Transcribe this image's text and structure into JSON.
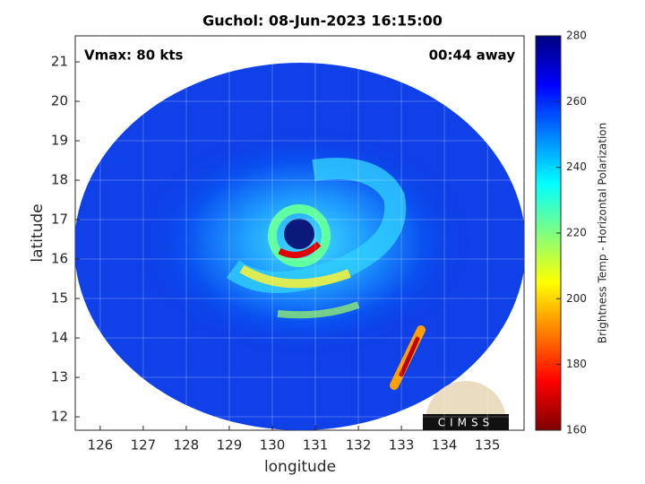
{
  "chart_data": {
    "type": "image",
    "title": "Guchol: 08-Jun-2023 16:15:00",
    "xlabel": "longitude",
    "ylabel": "latitude",
    "xlim": [
      125.42,
      135.85
    ],
    "xticks": [
      126,
      127,
      128,
      129,
      130,
      131,
      132,
      133,
      134,
      135
    ],
    "ylim": [
      11.66,
      21.66
    ],
    "yticks": [
      12,
      13,
      14,
      15,
      16,
      17,
      18,
      19,
      20,
      21
    ],
    "grid": true,
    "annotations": [
      "Vmax: 80 kts",
      "00:44 away"
    ],
    "colorbar": {
      "label": "Brightness Temp - Horizontal Polarization",
      "lim": [
        160,
        280
      ],
      "ticks": [
        160,
        180,
        200,
        220,
        240,
        260,
        280
      ],
      "colormap": [
        "#7f0000",
        "#ff0000",
        "#ff8000",
        "#ffff00",
        "#80ff80",
        "#00ffff",
        "#0080ff",
        "#0000ff",
        "#00007f"
      ]
    },
    "logo": "CIMSS"
  }
}
